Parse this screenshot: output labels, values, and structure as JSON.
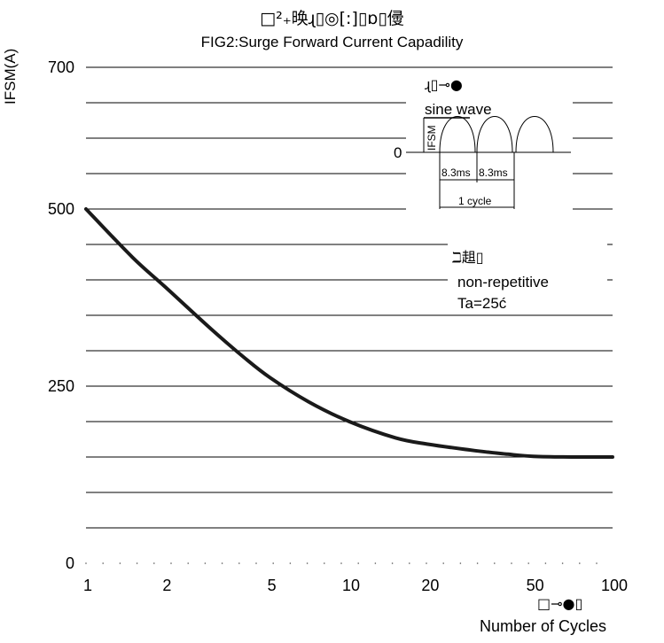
{
  "chart_data": {
    "type": "line",
    "title_cjk": "□²₊㬇ɻ▯◎[:]▯ɒ▯㑴",
    "title": "FIG2:Surge Forward Current Capadility",
    "ylabel": "IFSM(A)",
    "xlabel": "Number of Cycles",
    "xlabel_cjk": "□⊸●▯",
    "xscale": "log",
    "xlim": [
      1,
      100
    ],
    "ylim": [
      0,
      700
    ],
    "x_ticks": [
      1,
      2,
      5,
      10,
      20,
      50,
      100
    ],
    "x_tick_labels": [
      "1",
      "2",
      "5",
      "10",
      "20",
      "50",
      "100"
    ],
    "y_ticks": [
      0,
      250,
      500,
      700
    ],
    "y_tick_labels": [
      "0",
      "250",
      "500",
      "700"
    ],
    "grid": "horizontal",
    "series": [
      {
        "color": "#1a1a1a",
        "x": [
          1,
          1.5,
          2,
          3,
          4,
          5,
          7,
          10,
          15,
          20,
          30,
          40,
          50,
          70,
          100
        ],
        "y": [
          500,
          432,
          390,
          330,
          290,
          262,
          228,
          200,
          177,
          168,
          159,
          154,
          151,
          150,
          150
        ]
      }
    ],
    "annotations": {
      "wave_cjk": "ɻ▯⊸●",
      "wave_label": "sine wave",
      "wave_ifsm": "IFSM",
      "wave_zero": "0",
      "wave_period1": "8.3ms",
      "wave_period2": "8.3ms",
      "wave_cycle": "1 cycle",
      "cond_cjk": "ℶ趄▯",
      "cond_line1": "non-repetitive",
      "cond_line2": "Ta=25ć"
    }
  }
}
